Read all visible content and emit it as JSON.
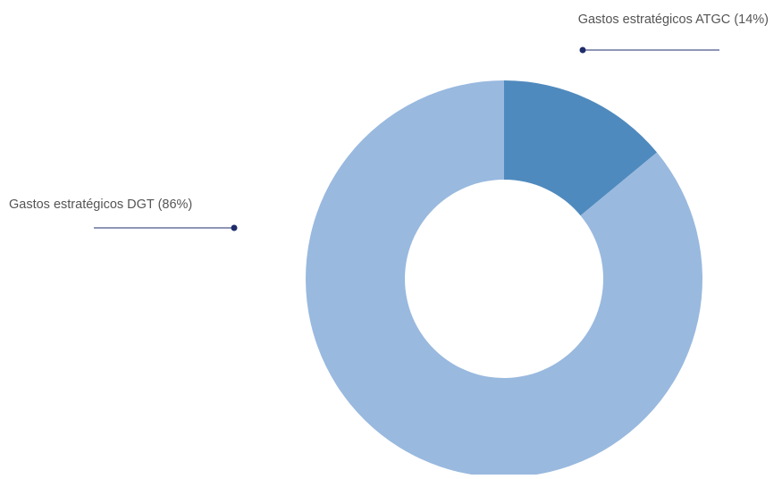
{
  "chart_data": {
    "type": "donut",
    "categories": [
      "Gastos estratégicos ATGC",
      "Gastos estratégicos DGT"
    ],
    "values": [
      14,
      86
    ],
    "value_labels": [
      "(14%)",
      "(86%)"
    ],
    "colors": [
      "#4f8abe",
      "#99b9df"
    ]
  }
}
